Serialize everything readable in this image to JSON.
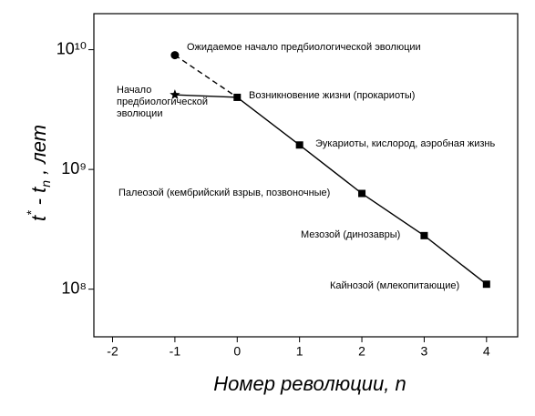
{
  "chart_data": {
    "type": "line",
    "x_label": "Номер революции, n",
    "y_label_parts": [
      "t",
      "*",
      " - t",
      "n",
      " , лет"
    ],
    "log_y": true,
    "xlim": [
      -2.3,
      4.5
    ],
    "xticks": [
      -2,
      -1,
      0,
      1,
      2,
      3,
      4
    ],
    "ylim": [
      40000000,
      20000000000
    ],
    "yticks": [
      {
        "value": 100000000,
        "label": "10⁸"
      },
      {
        "value": 1000000000,
        "label": "10⁹"
      },
      {
        "value": 10000000000,
        "label": "10¹⁰"
      }
    ],
    "color": "#000000",
    "series": [
      {
        "x": [
          -1,
          0
        ],
        "values": [
          9000000000,
          4000000000
        ],
        "dashed": true,
        "markers": [
          "circle",
          "none"
        ]
      },
      {
        "x": [
          -1,
          0,
          1,
          2,
          3,
          4
        ],
        "values": [
          4200000000,
          4000000000,
          1600000000,
          630000000,
          280000000,
          110000000
        ],
        "dashed": false,
        "markers": [
          "star",
          "square",
          "square",
          "square",
          "square",
          "square"
        ]
      }
    ],
    "annotations": [
      {
        "lines": [
          "Ожидаемое начало предбиологической эволюции"
        ]
      },
      {
        "lines": [
          "Начало",
          "предбиологической",
          "эволюции"
        ]
      },
      {
        "lines": [
          "Возникновение жизни (прокариоты)"
        ]
      },
      {
        "lines": [
          "Эукариоты, кислород, аэробная жизнь"
        ]
      },
      {
        "lines": [
          "Палеозой (кембрийский взрыв, позвоночные)"
        ]
      },
      {
        "lines": [
          "Мезозой (динозавры)"
        ]
      },
      {
        "lines": [
          "Кайнозой (млекопитающие)"
        ]
      }
    ]
  }
}
